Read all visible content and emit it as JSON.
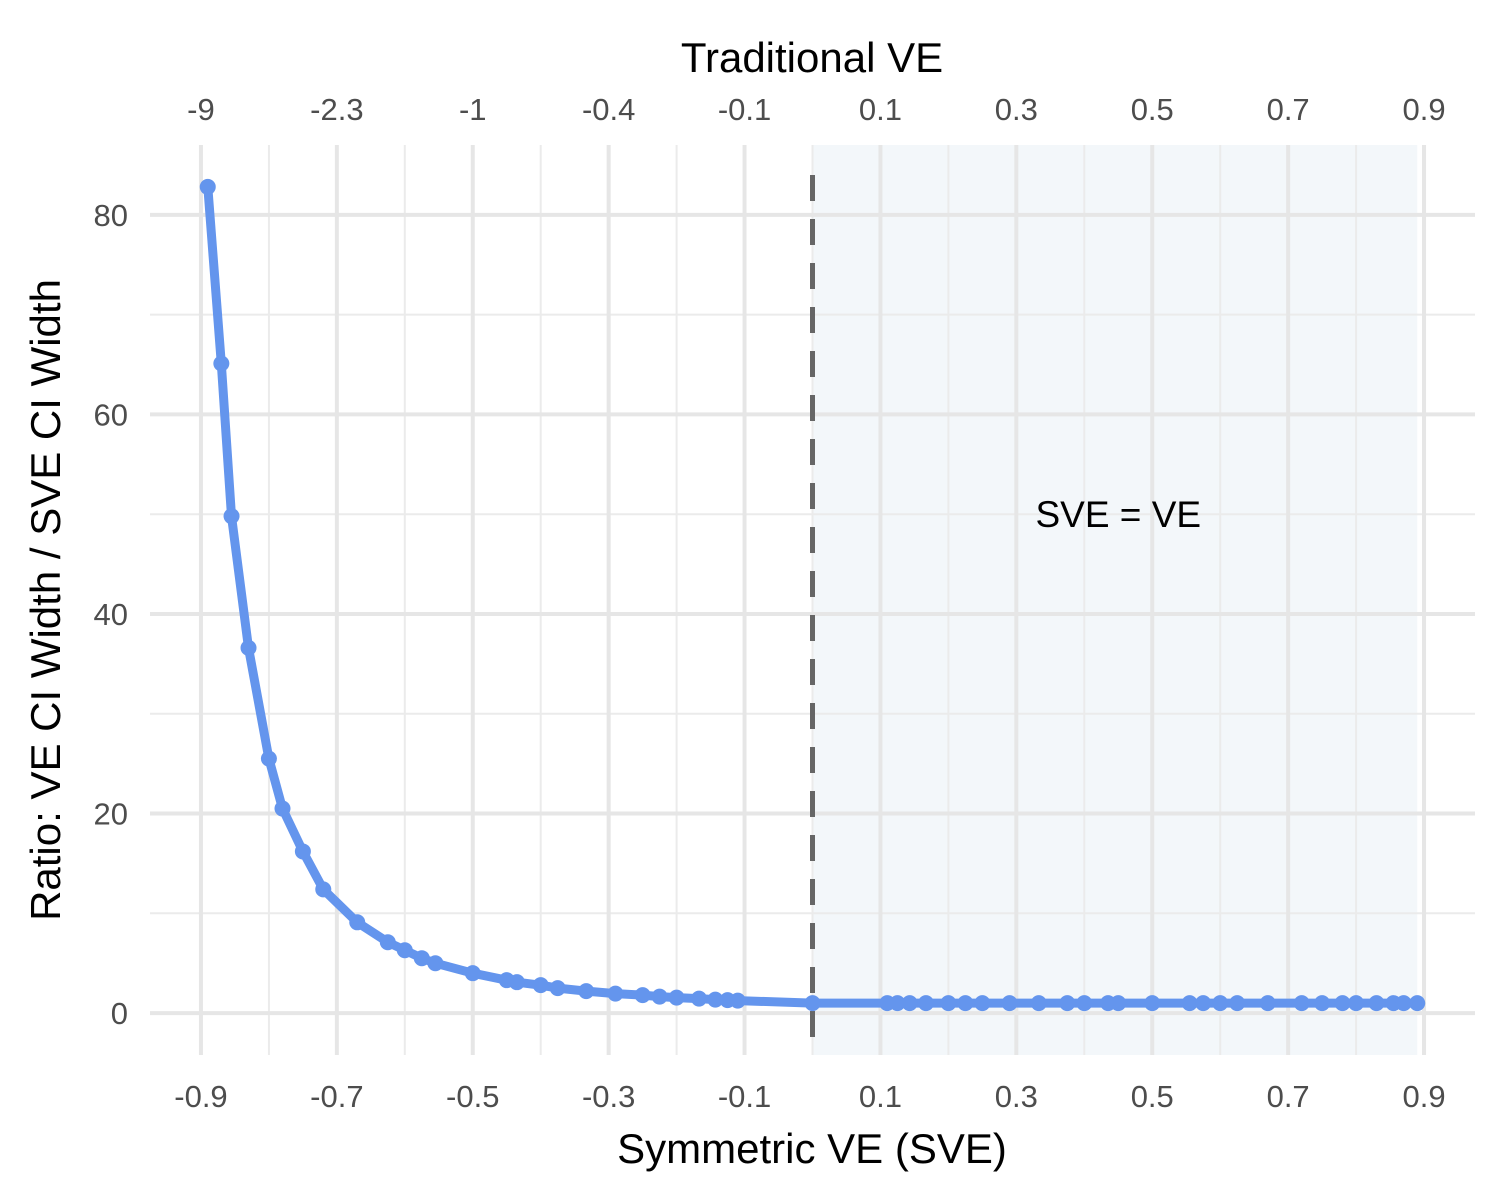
{
  "chart_data": {
    "type": "line",
    "xlabel": "Symmetric VE (SVE)",
    "ylabel": "Ratio: VE CI Width / SVE CI Width",
    "top_axis_label": "Traditional VE",
    "x_ticks": [
      -0.9,
      -0.7,
      -0.5,
      -0.3,
      -0.1,
      0.1,
      0.3,
      0.5,
      0.7,
      0.9
    ],
    "x_tick_labels": [
      "-0.9",
      "-0.7",
      "-0.5",
      "-0.3",
      "-0.1",
      "0.1",
      "0.3",
      "0.5",
      "0.7",
      "0.9"
    ],
    "top_ticks_at_sve": [
      -0.9,
      -0.7,
      -0.5,
      -0.3,
      -0.1,
      0.1,
      0.3,
      0.5,
      0.7,
      0.9
    ],
    "top_tick_labels": [
      "-9",
      "-2.3",
      "-1",
      "-0.4",
      "-0.1",
      "0.1",
      "0.3",
      "0.5",
      "0.7",
      "0.9"
    ],
    "y_ticks": [
      0,
      20,
      40,
      60,
      80
    ],
    "y_tick_labels": [
      "0",
      "20",
      "40",
      "60",
      "80"
    ],
    "xlim": [
      -0.975,
      0.975
    ],
    "ylim": [
      -4.2,
      87
    ],
    "grid": true,
    "reference_line": {
      "x": 0,
      "style": "dashed",
      "color": "#666666"
    },
    "shaded_region": {
      "x_from": 0,
      "x_to": 0.89,
      "fill": "#f3f7fa"
    },
    "annotation": {
      "text": "SVE = VE",
      "x": 0.45,
      "y": 50
    },
    "series": [
      {
        "color": "#6495ed",
        "x": [
          -0.89,
          -0.87,
          -0.855,
          -0.83,
          -0.8,
          -0.78,
          -0.75,
          -0.72,
          -0.67,
          -0.625,
          -0.6,
          -0.575,
          -0.555,
          -0.5,
          -0.45,
          -0.435,
          -0.4,
          -0.375,
          -0.333,
          -0.29,
          -0.25,
          -0.225,
          -0.2,
          -0.167,
          -0.143,
          -0.125,
          -0.11,
          0,
          0.11,
          0.125,
          0.143,
          0.167,
          0.2,
          0.225,
          0.25,
          0.29,
          0.333,
          0.375,
          0.4,
          0.435,
          0.45,
          0.5,
          0.555,
          0.575,
          0.6,
          0.625,
          0.67,
          0.72,
          0.75,
          0.78,
          0.8,
          0.83,
          0.855,
          0.87,
          0.89
        ],
        "y": [
          82.8,
          65.1,
          49.8,
          36.6,
          25.5,
          20.5,
          16.2,
          12.4,
          9.1,
          7.1,
          6.3,
          5.5,
          5.0,
          4.0,
          3.3,
          3.1,
          2.8,
          2.5,
          2.2,
          1.95,
          1.8,
          1.65,
          1.55,
          1.45,
          1.35,
          1.3,
          1.25,
          1.0,
          1.0,
          1.0,
          1.0,
          1.0,
          1.0,
          1.0,
          1.0,
          1.0,
          1.0,
          1.0,
          1.0,
          1.0,
          1.0,
          1.0,
          1.0,
          1.0,
          1.0,
          1.0,
          1.0,
          1.0,
          1.0,
          1.0,
          1.0,
          1.0,
          1.0,
          1.0,
          1.0
        ]
      }
    ]
  }
}
